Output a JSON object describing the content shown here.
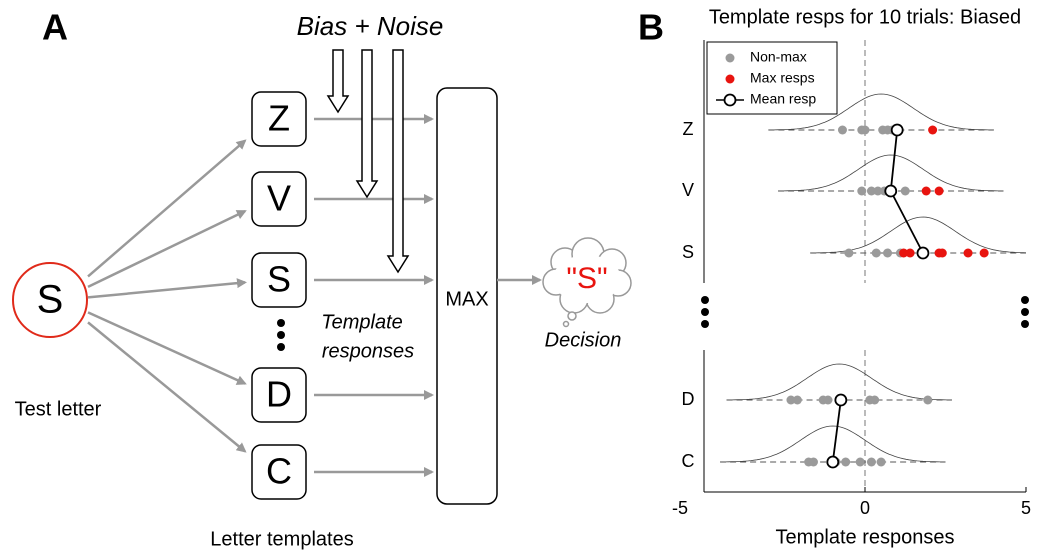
{
  "panel_labels": [
    "A",
    "B"
  ],
  "diagram": {
    "bias_noise": "Bias + Noise",
    "test_letter": "S",
    "test_caption": "Test letter",
    "templates": [
      "Z",
      "V",
      "S",
      "D",
      "C"
    ],
    "templates_caption": "Letter templates",
    "responses_caption": [
      "Template",
      "responses"
    ],
    "max_label": "MAX",
    "decision_value": "\"S\"",
    "decision_caption": "Decision"
  },
  "chart_data": {
    "type": "strip",
    "title": "Template resps for 10 trials: Biased",
    "xlabel": "Template responses",
    "xlim": [
      -5,
      5
    ],
    "xticks": [
      -5,
      0,
      5
    ],
    "legend": [
      "Non-max",
      "Max resps",
      "Mean resp"
    ],
    "colors": {
      "non_max": "#9a9a9a",
      "max": "#e8140f",
      "mean": "#000000"
    },
    "sd": 1,
    "rows": [
      {
        "label": "Z",
        "non_max": [
          -0.7,
          -0.1,
          0.0,
          0.55,
          0.7,
          0.85
        ],
        "max": [
          2.1
        ],
        "mean": 1.0,
        "curve_mean": 0.5
      },
      {
        "label": "V",
        "non_max": [
          -0.1,
          0.2,
          0.4,
          0.6,
          0.8,
          1.25
        ],
        "max": [
          1.9,
          2.3
        ],
        "mean": 0.8,
        "curve_mean": 0.8
      },
      {
        "label": "S",
        "non_max": [
          -0.5,
          0.35,
          0.7,
          1.1
        ],
        "max": [
          1.2,
          1.4,
          2.3,
          2.4,
          3.2,
          3.7
        ],
        "mean": 1.8,
        "curve_mean": 1.8
      },
      {
        "label": "D",
        "non_max": [
          -2.3,
          -2.1,
          -1.3,
          -1.15,
          -0.8,
          0.15,
          0.3,
          1.95
        ],
        "max": [],
        "mean": -0.75,
        "curve_mean": -0.8
      },
      {
        "label": "C",
        "non_max": [
          -1.75,
          -1.6,
          -0.9,
          -0.6,
          -0.15,
          0.2,
          0.5
        ],
        "max": [],
        "mean": -1.0,
        "curve_mean": -1.0
      }
    ]
  }
}
